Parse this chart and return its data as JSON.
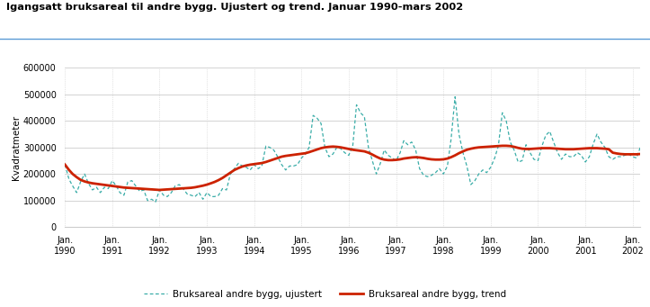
{
  "title": "Igangsatt bruksareal til andre bygg. Ujustert og trend. Januar 1990-mars 2002",
  "ylabel": "Kvadratmeter",
  "ylim": [
    0,
    600000
  ],
  "yticks": [
    0,
    100000,
    200000,
    300000,
    400000,
    500000,
    600000
  ],
  "ytick_labels": [
    "0",
    "100000",
    "200000",
    "300000",
    "400000",
    "500000",
    "600000"
  ],
  "xtick_years": [
    1990,
    1991,
    1992,
    1993,
    1994,
    1995,
    1996,
    1997,
    1998,
    1999,
    2000,
    2001,
    2002
  ],
  "legend_unadjusted": "Bruksareal andre bygg, ujustert",
  "legend_trend": "Bruksareal andre bygg, trend",
  "unadjusted_color": "#3AADA8",
  "trend_color": "#CC2200",
  "background_color": "#ffffff",
  "title_line_color": "#5B9BD5",
  "grid_color": "#cccccc",
  "unadjusted": [
    235000,
    180000,
    155000,
    130000,
    170000,
    200000,
    165000,
    140000,
    150000,
    130000,
    150000,
    145000,
    175000,
    155000,
    130000,
    120000,
    170000,
    175000,
    155000,
    135000,
    140000,
    100000,
    105000,
    95000,
    140000,
    120000,
    115000,
    130000,
    155000,
    160000,
    145000,
    125000,
    120000,
    115000,
    130000,
    105000,
    130000,
    115000,
    115000,
    120000,
    145000,
    140000,
    200000,
    220000,
    240000,
    230000,
    225000,
    215000,
    235000,
    220000,
    230000,
    305000,
    300000,
    290000,
    265000,
    235000,
    215000,
    230000,
    230000,
    235000,
    260000,
    275000,
    300000,
    420000,
    410000,
    390000,
    300000,
    265000,
    275000,
    300000,
    295000,
    280000,
    270000,
    305000,
    460000,
    430000,
    415000,
    300000,
    250000,
    200000,
    240000,
    290000,
    270000,
    260000,
    250000,
    280000,
    325000,
    310000,
    320000,
    290000,
    220000,
    195000,
    190000,
    195000,
    205000,
    220000,
    200000,
    230000,
    330000,
    490000,
    350000,
    280000,
    230000,
    160000,
    175000,
    200000,
    215000,
    205000,
    225000,
    260000,
    305000,
    430000,
    400000,
    320000,
    290000,
    245000,
    250000,
    310000,
    280000,
    255000,
    250000,
    305000,
    345000,
    360000,
    320000,
    280000,
    255000,
    275000,
    265000,
    265000,
    280000,
    270000,
    245000,
    265000,
    310000,
    350000,
    320000,
    300000,
    265000,
    255000,
    265000,
    265000,
    270000,
    275000,
    265000,
    260000,
    300000
  ],
  "trend": [
    235000,
    215000,
    200000,
    188000,
    178000,
    172000,
    168000,
    165000,
    163000,
    161000,
    159000,
    157000,
    155000,
    153000,
    151000,
    149000,
    148000,
    147000,
    146000,
    145000,
    144000,
    143000,
    142000,
    141000,
    140000,
    141000,
    142000,
    143000,
    144000,
    145000,
    146000,
    147000,
    148000,
    150000,
    153000,
    156000,
    160000,
    165000,
    170000,
    177000,
    185000,
    195000,
    205000,
    215000,
    222000,
    228000,
    232000,
    235000,
    237000,
    239000,
    241000,
    245000,
    250000,
    255000,
    260000,
    265000,
    268000,
    270000,
    272000,
    274000,
    276000,
    278000,
    282000,
    287000,
    292000,
    297000,
    300000,
    302000,
    303000,
    302000,
    300000,
    297000,
    294000,
    291000,
    289000,
    287000,
    285000,
    280000,
    273000,
    265000,
    258000,
    254000,
    252000,
    252000,
    253000,
    255000,
    258000,
    260000,
    262000,
    263000,
    262000,
    260000,
    257000,
    255000,
    254000,
    254000,
    255000,
    258000,
    263000,
    270000,
    278000,
    285000,
    291000,
    295000,
    298000,
    300000,
    301000,
    302000,
    303000,
    304000,
    305000,
    306000,
    306000,
    305000,
    302000,
    298000,
    295000,
    294000,
    294000,
    295000,
    296000,
    297000,
    297000,
    297000,
    296000,
    295000,
    294000,
    293000,
    293000,
    293000,
    294000,
    295000,
    296000,
    297000,
    297000,
    297000,
    296000,
    295000,
    293000,
    280000,
    277000,
    275000,
    274000,
    274000,
    274000,
    274000,
    275000
  ]
}
